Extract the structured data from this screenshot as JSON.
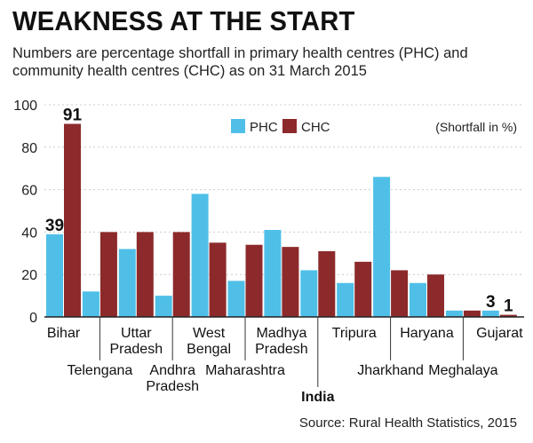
{
  "header": {
    "title": "WEAKNESS AT THE START",
    "subtitle": "Numbers are percentage shortfall in primary health centres (PHC) and community health centres (CHC) as on 31 March 2015"
  },
  "footer": {
    "source": "Source: Rural Health Statistics, 2015"
  },
  "colors": {
    "phc": "#4fbfe8",
    "chc": "#8c2a2b",
    "axis": "#222222",
    "grid": "#cccccc"
  },
  "chart_data": {
    "type": "bar",
    "unit_note": "(Shortfall in %)",
    "ylim": [
      0,
      100
    ],
    "yticks": [
      0,
      20,
      40,
      60,
      80,
      100
    ],
    "legend_position": "top-center",
    "categories": [
      {
        "name": "Bihar",
        "lines": [
          "Bihar"
        ],
        "row": 0
      },
      {
        "name": "Telengana",
        "lines": [
          "Telengana"
        ],
        "row": 1
      },
      {
        "name": "Uttar Pradesh",
        "lines": [
          "Uttar",
          "Pradesh"
        ],
        "row": 0
      },
      {
        "name": "Andhra Pradesh",
        "lines": [
          "Andhra",
          "Pradesh"
        ],
        "row": 1
      },
      {
        "name": "West Bengal",
        "lines": [
          "West",
          "Bengal"
        ],
        "row": 0
      },
      {
        "name": "Maharashtra",
        "lines": [
          "Maharashtra"
        ],
        "row": 1
      },
      {
        "name": "Madhya Pradesh",
        "lines": [
          "Madhya",
          "Pradesh"
        ],
        "row": 0
      },
      {
        "name": "India",
        "lines": [
          "India"
        ],
        "row": 2,
        "bold": true
      },
      {
        "name": "Tripura",
        "lines": [
          "Tripura"
        ],
        "row": 0
      },
      {
        "name": "Jharkhand",
        "lines": [
          "Jharkhand"
        ],
        "row": 1
      },
      {
        "name": "Haryana",
        "lines": [
          "Haryana"
        ],
        "row": 0
      },
      {
        "name": "Meghalaya",
        "lines": [
          "Meghalaya"
        ],
        "row": 1
      },
      {
        "name": "Gujarat",
        "lines": [
          "Gujarat"
        ],
        "row": 0
      }
    ],
    "series": [
      {
        "name": "PHC",
        "values": [
          39,
          12,
          32,
          10,
          58,
          17,
          41,
          22,
          16,
          66,
          16,
          3,
          3
        ]
      },
      {
        "name": "CHC",
        "values": [
          91,
          40,
          40,
          40,
          35,
          34,
          33,
          31,
          26,
          22,
          20,
          3,
          1
        ]
      }
    ],
    "annotations": [
      {
        "text": "39",
        "category": 0,
        "series": 0
      },
      {
        "text": "91",
        "category": 0,
        "series": 1
      },
      {
        "text": "3",
        "category": 12,
        "series": 0
      },
      {
        "text": "1",
        "category": 12,
        "series": 1
      }
    ]
  }
}
